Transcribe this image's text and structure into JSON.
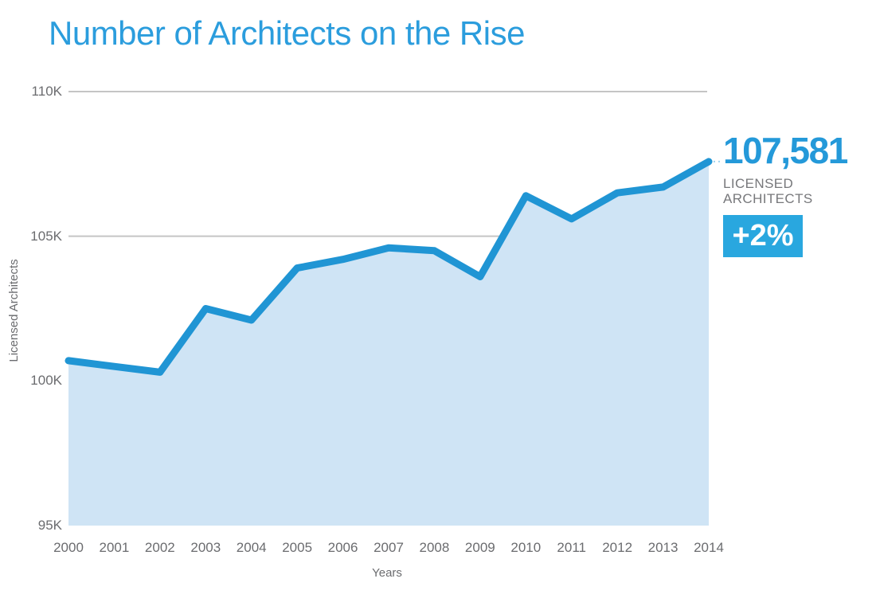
{
  "title": "Number of Architects on the Rise",
  "annotation": {
    "value": "107,581",
    "label_line1": "LICENSED",
    "label_line2": "ARCHITECTS",
    "badge": "+2%"
  },
  "colors": {
    "accent_blue": "#2499d9",
    "line_blue": "#2095d4",
    "badge_blue": "#29a7df",
    "area_fill": "#cfe4f5",
    "gridline": "#c5c5c5",
    "connector_blue": "#9fd4ef",
    "axis_text": "#6b6c6f"
  },
  "chart_data": {
    "type": "area",
    "x": [
      2000,
      2001,
      2002,
      2003,
      2004,
      2005,
      2006,
      2007,
      2008,
      2009,
      2010,
      2011,
      2012,
      2013,
      2014
    ],
    "series": [
      {
        "name": "Licensed Architects",
        "values": [
          100700,
          100500,
          100300,
          102500,
          102100,
          103900,
          104200,
          104600,
          104500,
          103600,
          106400,
          105600,
          106500,
          106700,
          107581
        ]
      }
    ],
    "title": "Number of Architects on the Rise",
    "xlabel": "Years",
    "ylabel": "Licensed Architects",
    "ylim": [
      95000,
      110000
    ],
    "yticks": [
      {
        "label": "95K",
        "value": 95000
      },
      {
        "label": "100K",
        "value": 100000
      },
      {
        "label": "105K",
        "value": 105000
      },
      {
        "label": "110K",
        "value": 110000
      }
    ],
    "gridlines_at": [
      105000,
      110000
    ],
    "grid": "horizontal-top-only",
    "legend": "none",
    "last_point_annotation": "107,581 LICENSED ARCHITECTS +2%"
  }
}
